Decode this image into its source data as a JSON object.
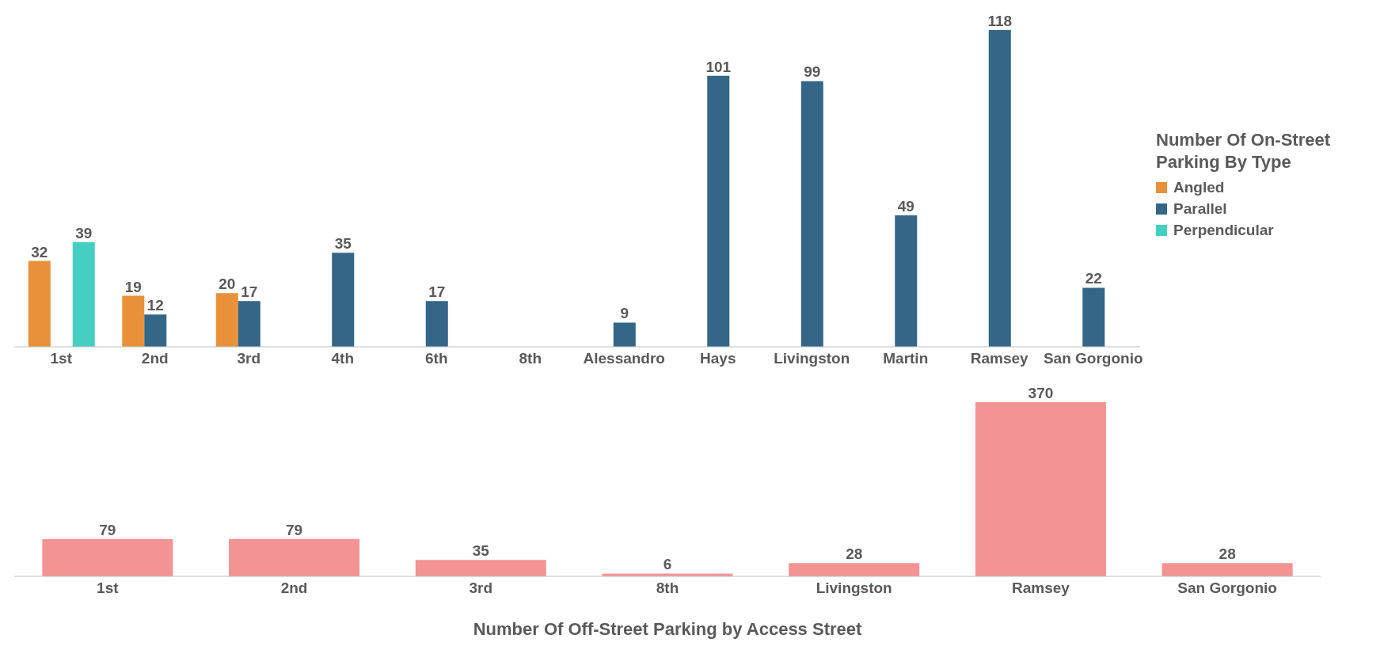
{
  "chart_data": [
    {
      "type": "bar",
      "categories": [
        "1st",
        "2nd",
        "3rd",
        "4th",
        "6th",
        "8th",
        "Alessandro",
        "Hays",
        "Livingston",
        "Martin",
        "Ramsey",
        "San Gorgonio"
      ],
      "series": [
        {
          "name": "Angled",
          "color": "#e8913a",
          "values": [
            32,
            19,
            20,
            null,
            null,
            null,
            null,
            null,
            null,
            null,
            null,
            null
          ]
        },
        {
          "name": "Parallel",
          "color": "#336687",
          "values": [
            null,
            12,
            17,
            35,
            17,
            null,
            9,
            101,
            99,
            49,
            118,
            22
          ]
        },
        {
          "name": "Perpendicular",
          "color": "#45cfc0",
          "values": [
            39,
            null,
            null,
            null,
            null,
            null,
            null,
            null,
            null,
            null,
            null,
            null
          ]
        }
      ],
      "legend_title": "Number Of On-Street Parking By Type",
      "legend": "right",
      "data_labels": true,
      "grid": false
    },
    {
      "type": "bar",
      "title": "Number Of Off-Street Parking by Access Street",
      "categories": [
        "1st",
        "2nd",
        "3rd",
        "8th",
        "Livingston",
        "Ramsey",
        "San Gorgonio"
      ],
      "values": [
        79,
        79,
        35,
        6,
        28,
        370,
        28
      ],
      "color": "#f49393",
      "data_labels": true,
      "grid": false
    }
  ]
}
